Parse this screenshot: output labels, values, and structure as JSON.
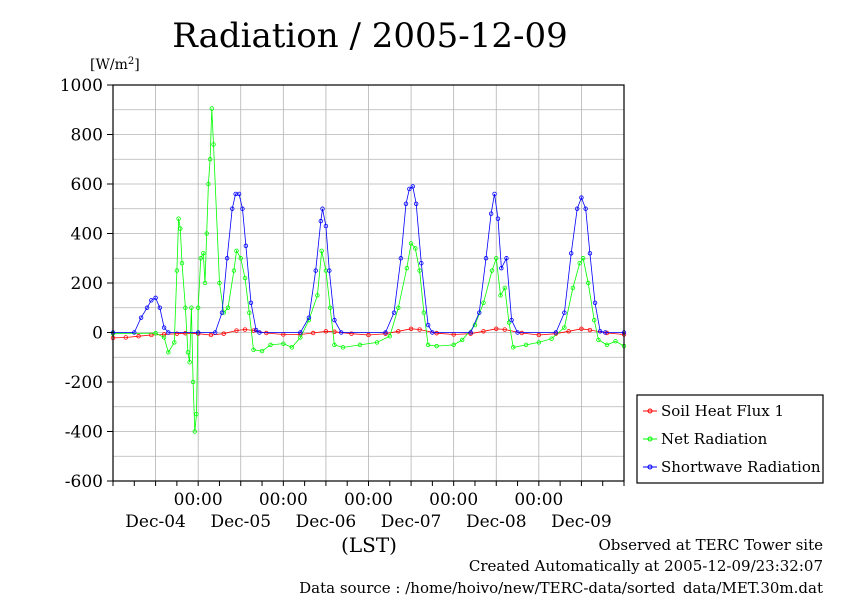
{
  "chart_data": {
    "type": "line",
    "title": "Radiation / 2005-12-09",
    "ylabel_unit": "[W/m",
    "ylabel_unit_sup": "2",
    "ylabel_unit_close": "]",
    "xlabel": "(LST)",
    "ylim": [
      -600,
      1000
    ],
    "xlim_days": [
      0,
      6
    ],
    "y_ticks": [
      "1000",
      "800",
      "600",
      "400",
      "200",
      "0",
      "-200",
      "-400",
      "-600"
    ],
    "y_tick_values": [
      1000,
      800,
      600,
      400,
      200,
      0,
      -200,
      -400,
      -600
    ],
    "x_time_ticks": [
      "00:00",
      "00:00",
      "00:00",
      "00:00",
      "00:00"
    ],
    "x_time_tick_days": [
      1,
      2,
      3,
      4,
      5
    ],
    "x_date_labels": [
      "Dec-04",
      "Dec-05",
      "Dec-06",
      "Dec-07",
      "Dec-08",
      "Dec-09"
    ],
    "x_date_label_days": [
      0.5,
      1.5,
      2.5,
      3.5,
      4.5,
      5.5
    ],
    "grid": true,
    "legend_position": "right-bottom",
    "series": [
      {
        "name": "Soil Heat Flux 1",
        "color": "#ff0000",
        "points": [
          [
            0.0,
            -22
          ],
          [
            0.15,
            -20
          ],
          [
            0.3,
            -15
          ],
          [
            0.45,
            -10
          ],
          [
            0.6,
            -8
          ],
          [
            0.75,
            -5
          ],
          [
            0.85,
            -3
          ],
          [
            1.0,
            -5
          ],
          [
            1.15,
            -10
          ],
          [
            1.3,
            -5
          ],
          [
            1.45,
            8
          ],
          [
            1.55,
            12
          ],
          [
            1.65,
            8
          ],
          [
            1.8,
            -2
          ],
          [
            2.0,
            -8
          ],
          [
            2.2,
            -8
          ],
          [
            2.35,
            -2
          ],
          [
            2.5,
            5
          ],
          [
            2.6,
            3
          ],
          [
            2.8,
            -5
          ],
          [
            3.0,
            -10
          ],
          [
            3.2,
            -5
          ],
          [
            3.35,
            5
          ],
          [
            3.5,
            15
          ],
          [
            3.6,
            12
          ],
          [
            3.8,
            -3
          ],
          [
            4.0,
            -8
          ],
          [
            4.2,
            -5
          ],
          [
            4.35,
            5
          ],
          [
            4.5,
            15
          ],
          [
            4.6,
            12
          ],
          [
            4.8,
            -2
          ],
          [
            5.0,
            -10
          ],
          [
            5.2,
            -5
          ],
          [
            5.35,
            5
          ],
          [
            5.5,
            15
          ],
          [
            5.6,
            10
          ],
          [
            5.8,
            -2
          ],
          [
            6.0,
            -8
          ]
        ]
      },
      {
        "name": "Net Radiation",
        "color": "#00ff00",
        "points": [
          [
            0.0,
            -5
          ],
          [
            0.5,
            -3
          ],
          [
            0.6,
            -20
          ],
          [
            0.65,
            -80
          ],
          [
            0.72,
            -40
          ],
          [
            0.75,
            250
          ],
          [
            0.77,
            460
          ],
          [
            0.79,
            420
          ],
          [
            0.81,
            280
          ],
          [
            0.85,
            100
          ],
          [
            0.88,
            -80
          ],
          [
            0.9,
            -120
          ],
          [
            0.92,
            100
          ],
          [
            0.94,
            -200
          ],
          [
            0.96,
            -400
          ],
          [
            0.98,
            -330
          ],
          [
            1.0,
            100
          ],
          [
            1.03,
            300
          ],
          [
            1.06,
            320
          ],
          [
            1.08,
            200
          ],
          [
            1.1,
            400
          ],
          [
            1.12,
            600
          ],
          [
            1.14,
            700
          ],
          [
            1.16,
            905
          ],
          [
            1.18,
            760
          ],
          [
            1.25,
            200
          ],
          [
            1.3,
            80
          ],
          [
            1.35,
            100
          ],
          [
            1.42,
            250
          ],
          [
            1.45,
            330
          ],
          [
            1.5,
            300
          ],
          [
            1.55,
            220
          ],
          [
            1.6,
            80
          ],
          [
            1.65,
            -70
          ],
          [
            1.75,
            -75
          ],
          [
            1.85,
            -50
          ],
          [
            2.0,
            -45
          ],
          [
            2.1,
            -60
          ],
          [
            2.2,
            -20
          ],
          [
            2.3,
            50
          ],
          [
            2.4,
            150
          ],
          [
            2.45,
            330
          ],
          [
            2.5,
            250
          ],
          [
            2.55,
            100
          ],
          [
            2.6,
            -50
          ],
          [
            2.7,
            -60
          ],
          [
            2.9,
            -50
          ],
          [
            3.1,
            -40
          ],
          [
            3.25,
            -15
          ],
          [
            3.35,
            100
          ],
          [
            3.45,
            260
          ],
          [
            3.5,
            360
          ],
          [
            3.55,
            340
          ],
          [
            3.6,
            250
          ],
          [
            3.65,
            80
          ],
          [
            3.7,
            -50
          ],
          [
            3.8,
            -55
          ],
          [
            4.0,
            -50
          ],
          [
            4.1,
            -30
          ],
          [
            4.25,
            30
          ],
          [
            4.35,
            120
          ],
          [
            4.45,
            250
          ],
          [
            4.5,
            300
          ],
          [
            4.55,
            150
          ],
          [
            4.6,
            180
          ],
          [
            4.65,
            40
          ],
          [
            4.7,
            -60
          ],
          [
            4.85,
            -50
          ],
          [
            5.0,
            -40
          ],
          [
            5.15,
            -25
          ],
          [
            5.3,
            20
          ],
          [
            5.4,
            180
          ],
          [
            5.48,
            280
          ],
          [
            5.52,
            300
          ],
          [
            5.58,
            200
          ],
          [
            5.65,
            50
          ],
          [
            5.7,
            -30
          ],
          [
            5.8,
            -50
          ],
          [
            5.9,
            -35
          ],
          [
            6.0,
            -55
          ]
        ]
      },
      {
        "name": "Shortwave Radiation",
        "color": "#0000ff",
        "points": [
          [
            0.0,
            0
          ],
          [
            0.25,
            0
          ],
          [
            0.33,
            60
          ],
          [
            0.4,
            100
          ],
          [
            0.45,
            130
          ],
          [
            0.5,
            140
          ],
          [
            0.55,
            100
          ],
          [
            0.6,
            20
          ],
          [
            0.65,
            0
          ],
          [
            1.0,
            0
          ],
          [
            1.2,
            0
          ],
          [
            1.28,
            80
          ],
          [
            1.34,
            300
          ],
          [
            1.4,
            500
          ],
          [
            1.44,
            560
          ],
          [
            1.48,
            560
          ],
          [
            1.52,
            500
          ],
          [
            1.56,
            350
          ],
          [
            1.62,
            120
          ],
          [
            1.68,
            10
          ],
          [
            1.72,
            0
          ],
          [
            2.2,
            0
          ],
          [
            2.3,
            60
          ],
          [
            2.38,
            250
          ],
          [
            2.44,
            450
          ],
          [
            2.46,
            500
          ],
          [
            2.5,
            430
          ],
          [
            2.54,
            250
          ],
          [
            2.6,
            50
          ],
          [
            2.68,
            0
          ],
          [
            3.2,
            0
          ],
          [
            3.3,
            80
          ],
          [
            3.38,
            300
          ],
          [
            3.44,
            520
          ],
          [
            3.48,
            580
          ],
          [
            3.52,
            590
          ],
          [
            3.56,
            520
          ],
          [
            3.62,
            280
          ],
          [
            3.7,
            30
          ],
          [
            3.75,
            0
          ],
          [
            4.2,
            0
          ],
          [
            4.3,
            80
          ],
          [
            4.38,
            300
          ],
          [
            4.44,
            480
          ],
          [
            4.48,
            560
          ],
          [
            4.52,
            460
          ],
          [
            4.56,
            260
          ],
          [
            4.62,
            300
          ],
          [
            4.68,
            50
          ],
          [
            4.75,
            0
          ],
          [
            5.2,
            0
          ],
          [
            5.3,
            80
          ],
          [
            5.38,
            320
          ],
          [
            5.45,
            500
          ],
          [
            5.5,
            545
          ],
          [
            5.55,
            500
          ],
          [
            5.6,
            320
          ],
          [
            5.66,
            120
          ],
          [
            5.72,
            5
          ],
          [
            5.78,
            0
          ],
          [
            6.0,
            0
          ]
        ]
      }
    ]
  },
  "footer": {
    "observed": "Observed at TERC Tower site",
    "created": "Created Automatically at 2005-12-09/23:32:07",
    "source": "Data source : /home/hoivo/new/TERC-data/sorted_data/MET.30m.dat"
  }
}
